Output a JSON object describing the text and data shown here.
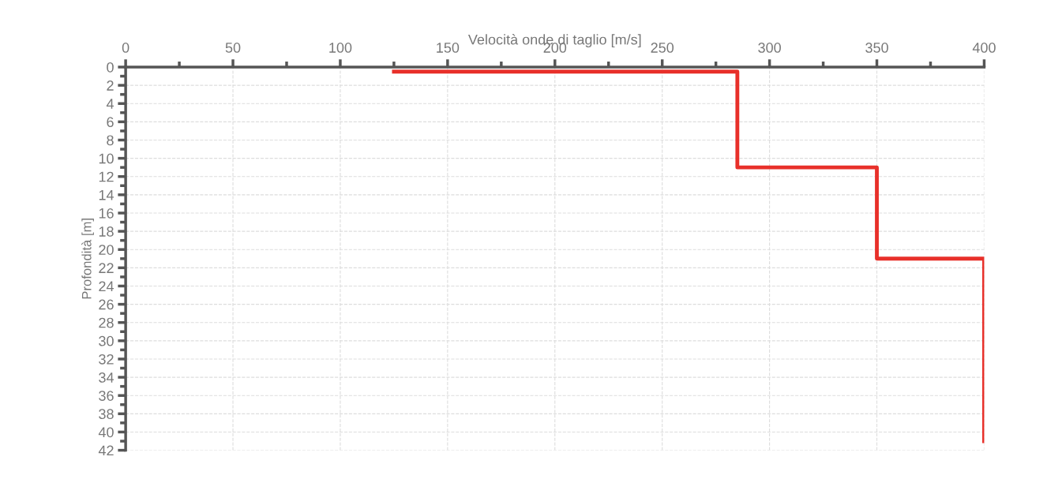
{
  "chart_data": {
    "type": "line",
    "xlabel": "Velocità onde di taglio [m/s]",
    "ylabel": "Profondità [m]",
    "series": [
      {
        "color": "#e8302a",
        "x": [
          125,
          285,
          285,
          350,
          350,
          400,
          400
        ],
        "values": [
          0.5,
          0.5,
          11,
          11,
          21,
          21,
          41
        ]
      }
    ],
    "xlim": [
      0,
      400
    ],
    "xticks": [
      0,
      {
        "value": 25,
        "label": null
      },
      50,
      {
        "value": 75,
        "label": null
      },
      100,
      {
        "value": 125,
        "label": null
      },
      150,
      {
        "value": 175,
        "label": null
      },
      200,
      {
        "value": 225,
        "label": null
      },
      250,
      {
        "value": 275,
        "label": null
      },
      300,
      {
        "value": 325,
        "label": null
      },
      350,
      {
        "value": 375,
        "label": null
      },
      400
    ],
    "ylim": [
      42,
      0
    ],
    "yticks": [
      0,
      {
        "value": 1,
        "label": null
      },
      2,
      {
        "value": 3,
        "label": null
      },
      4,
      {
        "value": 5,
        "label": null
      },
      6,
      {
        "value": 7,
        "label": null
      },
      8,
      {
        "value": 9,
        "label": null
      },
      10,
      {
        "value": 11,
        "label": null
      },
      12,
      {
        "value": 13,
        "label": null
      },
      14,
      {
        "value": 15,
        "label": null
      },
      16,
      {
        "value": 17,
        "label": null
      },
      18,
      {
        "value": 19,
        "label": null
      },
      20,
      {
        "value": 21,
        "label": null
      },
      22,
      {
        "value": 23,
        "label": null
      },
      24,
      {
        "value": 25,
        "label": null
      },
      26,
      {
        "value": 27,
        "label": null
      },
      28,
      {
        "value": 29,
        "label": null
      },
      30,
      {
        "value": 31,
        "label": null
      },
      32,
      {
        "value": 33,
        "label": null
      },
      34,
      {
        "value": 35,
        "label": null
      },
      36,
      {
        "value": 37,
        "label": null
      },
      38,
      {
        "value": 39,
        "label": null
      },
      40,
      {
        "value": 41,
        "label": null
      },
      42
    ],
    "grid": true,
    "marker": "none",
    "line_style": "solid"
  }
}
